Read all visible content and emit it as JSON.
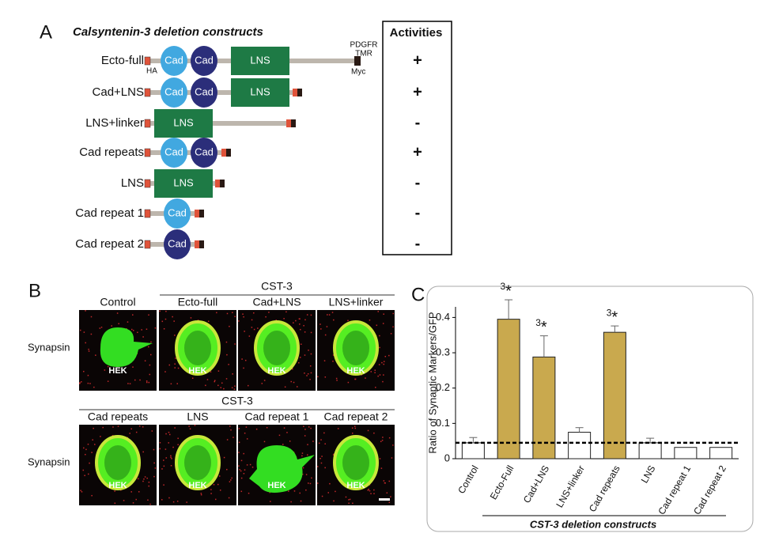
{
  "panel_a": {
    "label": "A",
    "title": "Calsyntenin-3 deletion constructs",
    "activities_header": "Activities",
    "tags": {
      "n_terminal": "HA",
      "c_terminal": "Myc",
      "transmembrane": [
        "PDGFR",
        "TMR"
      ]
    },
    "constructs": [
      {
        "name": "Ecto-full",
        "domains": [
          {
            "label": "Cad",
            "color": "#41a8e0"
          },
          {
            "label": "Cad",
            "color": "#2b2e7a"
          },
          {
            "label": "LNS",
            "color": "#1e7a45"
          }
        ],
        "activity": "+"
      },
      {
        "name": "Cad+LNS",
        "domains": [
          {
            "label": "Cad",
            "color": "#41a8e0"
          },
          {
            "label": "Cad",
            "color": "#2b2e7a"
          },
          {
            "label": "LNS",
            "color": "#1e7a45"
          }
        ],
        "activity": "+"
      },
      {
        "name": "LNS+linker",
        "domains": [
          {
            "label": "LNS",
            "color": "#1e7a45"
          }
        ],
        "activity": "-"
      },
      {
        "name": "Cad repeats",
        "domains": [
          {
            "label": "Cad",
            "color": "#41a8e0"
          },
          {
            "label": "Cad",
            "color": "#2b2e7a"
          }
        ],
        "activity": "+"
      },
      {
        "name": "LNS",
        "domains": [
          {
            "label": "LNS",
            "color": "#1e7a45"
          }
        ],
        "activity": "-"
      },
      {
        "name": "Cad repeat 1",
        "domains": [
          {
            "label": "Cad",
            "color": "#41a8e0"
          }
        ],
        "activity": "-"
      },
      {
        "name": "Cad repeat 2",
        "domains": [
          {
            "label": "Cad",
            "color": "#2b2e7a"
          }
        ],
        "activity": "-"
      }
    ]
  },
  "panel_b": {
    "label": "B",
    "groups": [
      {
        "header": "CST-3",
        "row_label": "Synapsin",
        "columns": [
          "Control",
          "Ecto-full",
          "Cad+LNS",
          "LNS+linker"
        ],
        "cell_labels": [
          "HEK",
          "HEK",
          "HEK",
          "HEK"
        ]
      },
      {
        "header": "CST-3",
        "row_label": "Synapsin",
        "columns": [
          "Cad repeats",
          "LNS",
          "Cad repeat 1",
          "Cad repeat 2"
        ],
        "cell_labels": [
          "HEK",
          "HEK",
          "HEK",
          "HEK"
        ]
      }
    ]
  },
  "chart_data": {
    "type": "bar",
    "label": "C",
    "ylabel": "Ratio of Synaptic Markers/GFP",
    "xlabel": "CST-3 deletion constructs",
    "categories": [
      "Control",
      "Ecto-Full",
      "Cad+LNS",
      "LNS+linker",
      "Cad repeats",
      "LNS",
      "Cad repeat 1",
      "Cad repeat 2"
    ],
    "values": [
      0.045,
      0.395,
      0.288,
      0.075,
      0.358,
      0.045,
      0.032,
      0.032
    ],
    "errors": [
      0.015,
      0.055,
      0.06,
      0.013,
      0.018,
      0.013,
      null,
      null
    ],
    "colors": [
      "#ffffff",
      "#c9a94e",
      "#c9a94e",
      "#ffffff",
      "#c9a94e",
      "#ffffff",
      "#ffffff",
      "#ffffff"
    ],
    "ylim": [
      0,
      0.43
    ],
    "yticks": [
      0,
      0.1,
      0.2,
      0.3,
      0.4
    ],
    "reference_line": 0.045,
    "annotations": [
      {
        "index": 1,
        "superscript": "3",
        "symbol": "*"
      },
      {
        "index": 2,
        "superscript": "3",
        "symbol": "*"
      },
      {
        "index": 4,
        "superscript": "3",
        "symbol": "*"
      }
    ]
  }
}
